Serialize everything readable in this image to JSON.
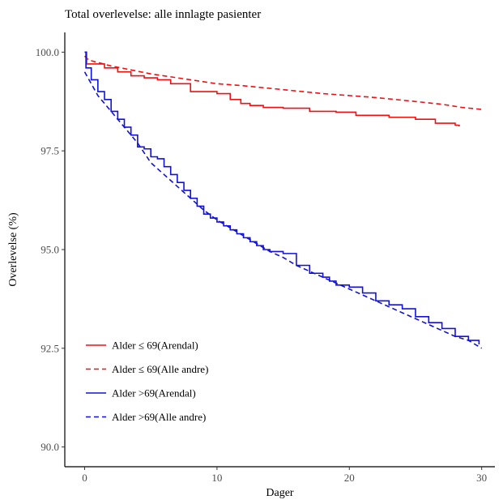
{
  "chart_data": {
    "type": "line",
    "title": "Total overlevelse: alle innlagte pasienter",
    "xlabel": "Dager",
    "ylabel": "Overlevelse (%)",
    "xlim": [
      -1.5,
      31
    ],
    "ylim": [
      89.5,
      100.5
    ],
    "xticks": [
      0,
      10,
      20,
      30
    ],
    "xtick_labels": [
      "0",
      "10",
      "20",
      "30"
    ],
    "yticks": [
      90.0,
      92.5,
      95.0,
      97.5,
      100.0
    ],
    "ytick_labels": [
      "90.0",
      "92.5",
      "95.0",
      "97.5",
      "100.0"
    ],
    "grid": false,
    "legend": "bottom-left",
    "series": [
      {
        "name": "Alder ≤ 69(Arendal)",
        "color": "#ee1111",
        "dash": "solid",
        "step": true,
        "x": [
          0,
          0.15,
          1.5,
          2.5,
          3.5,
          4.5,
          5.5,
          6.5,
          8,
          10,
          11,
          11.8,
          12.5,
          13.5,
          15,
          17,
          19,
          20.5,
          23,
          25,
          26.5,
          28,
          28.3
        ],
        "y": [
          100.0,
          99.7,
          99.6,
          99.5,
          99.4,
          99.35,
          99.3,
          99.2,
          99.0,
          98.95,
          98.8,
          98.7,
          98.65,
          98.6,
          98.58,
          98.5,
          98.48,
          98.4,
          98.35,
          98.3,
          98.2,
          98.15,
          98.12
        ]
      },
      {
        "name": "Alder ≤ 69(Alle andre)",
        "color": "#ee1111",
        "dash": "dashed",
        "step": false,
        "x": [
          0,
          0.3,
          2,
          5,
          8,
          10,
          12,
          15,
          18,
          20,
          22,
          25,
          27,
          28.5,
          30
        ],
        "y": [
          99.9,
          99.8,
          99.65,
          99.45,
          99.3,
          99.2,
          99.15,
          99.05,
          98.95,
          98.9,
          98.85,
          98.75,
          98.68,
          98.6,
          98.55
        ]
      },
      {
        "name": "Alder >69(Arendal)",
        "color": "#1111dd",
        "dash": "solid",
        "step": true,
        "x": [
          0,
          0.1,
          0.5,
          1,
          1.5,
          2,
          2.5,
          3,
          3.5,
          4,
          4.5,
          5,
          5.5,
          6,
          6.5,
          7,
          7.5,
          8,
          8.5,
          9,
          9.5,
          10,
          10.5,
          11,
          11.5,
          12,
          12.5,
          13,
          13.5,
          14,
          15,
          16,
          17,
          18,
          18.5,
          19,
          20,
          21,
          22,
          23,
          24,
          25,
          26,
          27,
          28,
          29,
          29.8
        ],
        "y": [
          100.0,
          99.6,
          99.3,
          99.0,
          98.8,
          98.5,
          98.3,
          98.1,
          97.9,
          97.6,
          97.55,
          97.35,
          97.3,
          97.1,
          96.9,
          96.7,
          96.5,
          96.3,
          96.1,
          95.9,
          95.8,
          95.7,
          95.6,
          95.5,
          95.4,
          95.3,
          95.2,
          95.1,
          95.0,
          94.95,
          94.9,
          94.6,
          94.4,
          94.3,
          94.2,
          94.1,
          94.05,
          93.9,
          93.7,
          93.6,
          93.5,
          93.3,
          93.15,
          93.0,
          92.8,
          92.7,
          92.6
        ]
      },
      {
        "name": "Alder >69(Alle andre)",
        "color": "#1111dd",
        "dash": "dashed",
        "step": false,
        "x": [
          0,
          0.5,
          1,
          2,
          3,
          4,
          5,
          6,
          7,
          8,
          9,
          10,
          11,
          12,
          13,
          14,
          15,
          16,
          17,
          18,
          19,
          20,
          21,
          22,
          23,
          24,
          25,
          26,
          27,
          28,
          29,
          30
        ],
        "y": [
          99.5,
          99.2,
          98.9,
          98.5,
          98.1,
          97.7,
          97.2,
          96.9,
          96.6,
          96.3,
          96.0,
          95.75,
          95.55,
          95.35,
          95.15,
          94.95,
          94.8,
          94.6,
          94.45,
          94.3,
          94.15,
          94.0,
          93.85,
          93.7,
          93.55,
          93.4,
          93.25,
          93.1,
          92.95,
          92.8,
          92.7,
          92.5
        ]
      }
    ]
  }
}
